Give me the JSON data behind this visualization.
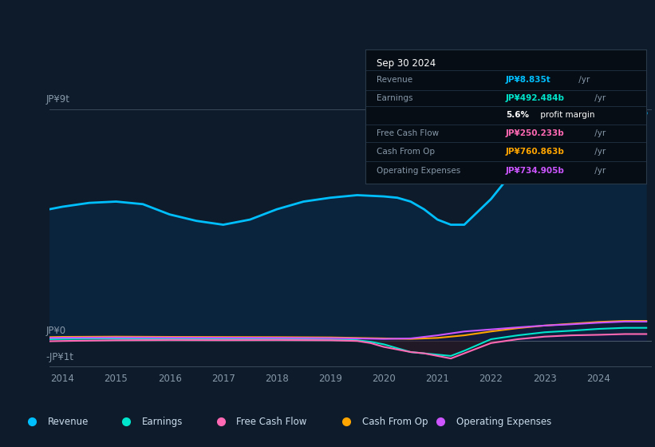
{
  "bg_color": "#0d1b2a",
  "plot_bg_color": "#112233",
  "title": "Sep 30 2024",
  "table_data": {
    "Revenue": {
      "value": "JP¥8.835t /yr",
      "color": "#00bfff"
    },
    "Earnings": {
      "value": "JP¥492.484b /yr",
      "color": "#00e5cc"
    },
    "profit_margin": {
      "value": "5.6% profit margin",
      "color": "#ffffff"
    },
    "Free Cash Flow": {
      "value": "JP¥250.233b /yr",
      "color": "#ff69b4"
    },
    "Cash From Op": {
      "value": "JP¥760.863b /yr",
      "color": "#ffa500"
    },
    "Operating Expenses": {
      "value": "JP¥734.905b /yr",
      "color": "#cc55ff"
    }
  },
  "y_label_top": "JP¥9t",
  "y_label_zero": "JP¥0",
  "y_label_bottom": "-JP¥1t",
  "x_ticks": [
    2014,
    2015,
    2016,
    2017,
    2018,
    2019,
    2020,
    2021,
    2022,
    2023,
    2024
  ],
  "legend": [
    {
      "label": "Revenue",
      "color": "#00bfff"
    },
    {
      "label": "Earnings",
      "color": "#00e5cc"
    },
    {
      "label": "Free Cash Flow",
      "color": "#ff69b4"
    },
    {
      "label": "Cash From Op",
      "color": "#ffa500"
    },
    {
      "label": "Operating Expenses",
      "color": "#cc55ff"
    }
  ],
  "revenue_x": [
    2013.75,
    2014.0,
    2014.5,
    2015.0,
    2015.5,
    2016.0,
    2016.5,
    2017.0,
    2017.5,
    2018.0,
    2018.5,
    2019.0,
    2019.5,
    2020.0,
    2020.25,
    2020.5,
    2020.75,
    2021.0,
    2021.25,
    2021.5,
    2022.0,
    2022.5,
    2023.0,
    2023.5,
    2024.0,
    2024.5,
    2024.9
  ],
  "revenue_y": [
    5100,
    5200,
    5350,
    5400,
    5300,
    4900,
    4650,
    4500,
    4700,
    5100,
    5400,
    5550,
    5650,
    5600,
    5550,
    5400,
    5100,
    4700,
    4500,
    4500,
    5500,
    6800,
    7600,
    8200,
    8700,
    8835,
    8835
  ],
  "earnings_x": [
    2013.75,
    2014.0,
    2015.0,
    2016.0,
    2017.0,
    2018.0,
    2019.0,
    2019.5,
    2019.75,
    2020.0,
    2020.25,
    2020.5,
    2020.75,
    2021.0,
    2021.25,
    2021.5,
    2022.0,
    2022.5,
    2023.0,
    2023.5,
    2024.0,
    2024.5,
    2024.9
  ],
  "earnings_y": [
    50,
    60,
    80,
    70,
    60,
    55,
    40,
    10,
    -50,
    -150,
    -300,
    -450,
    -500,
    -550,
    -600,
    -400,
    50,
    200,
    320,
    380,
    450,
    492,
    492
  ],
  "fcf_x": [
    2013.75,
    2014.0,
    2015.0,
    2016.0,
    2017.0,
    2018.0,
    2019.0,
    2019.5,
    2019.75,
    2020.0,
    2020.25,
    2020.5,
    2020.75,
    2021.0,
    2021.25,
    2021.5,
    2022.0,
    2022.5,
    2023.0,
    2023.5,
    2024.0,
    2024.5,
    2024.9
  ],
  "fcf_y": [
    -30,
    -20,
    10,
    20,
    15,
    20,
    10,
    -20,
    -100,
    -250,
    -350,
    -450,
    -500,
    -600,
    -700,
    -500,
    -100,
    50,
    150,
    200,
    220,
    250,
    250
  ],
  "cfo_x": [
    2013.75,
    2014.0,
    2015.0,
    2016.0,
    2017.0,
    2018.0,
    2019.0,
    2019.5,
    2020.0,
    2020.5,
    2021.0,
    2021.5,
    2022.0,
    2022.5,
    2023.0,
    2023.5,
    2024.0,
    2024.5,
    2024.9
  ],
  "cfo_y": [
    130,
    140,
    150,
    140,
    135,
    130,
    120,
    100,
    80,
    60,
    100,
    200,
    350,
    480,
    580,
    650,
    720,
    761,
    761
  ],
  "oe_x": [
    2013.75,
    2014.0,
    2015.0,
    2016.0,
    2017.0,
    2018.0,
    2019.0,
    2019.5,
    2020.0,
    2020.5,
    2021.0,
    2021.5,
    2022.0,
    2022.5,
    2023.0,
    2023.5,
    2024.0,
    2024.5,
    2024.9
  ],
  "oe_y": [
    100,
    110,
    120,
    115,
    110,
    105,
    95,
    80,
    60,
    80,
    200,
    350,
    430,
    510,
    580,
    630,
    690,
    735,
    735
  ],
  "y_min": -1100,
  "y_max": 9500,
  "x_min": 2013.75,
  "x_max": 2025.0
}
